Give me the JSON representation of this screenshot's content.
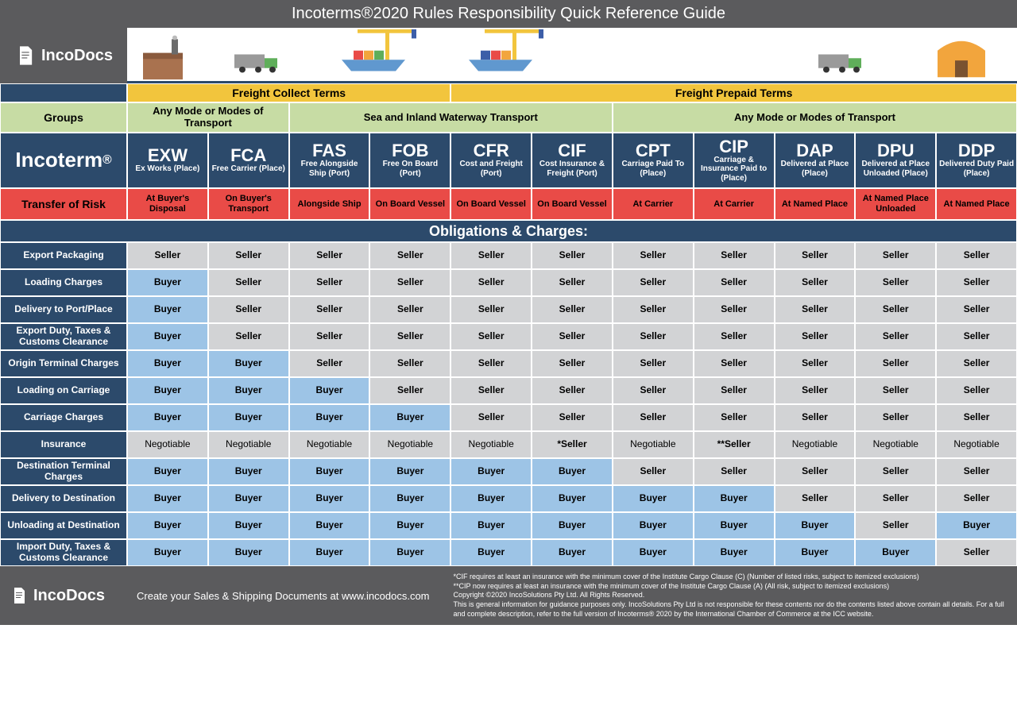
{
  "title": "Incoterms®2020 Rules Responsibility Quick Reference Guide",
  "brand": "IncoDocs",
  "colors": {
    "navy": "#2c4a6b",
    "yellow": "#f2c53d",
    "green": "#c7dca4",
    "red": "#e94b47",
    "seller_grey": "#d2d3d5",
    "buyer_blue": "#9dc4e6",
    "header_grey": "#5b5b5d"
  },
  "freightGroups": {
    "collect": {
      "label": "Freight Collect Terms",
      "span": 4
    },
    "prepaid": {
      "label": "Freight Prepaid Terms",
      "span": 7
    }
  },
  "transportGroups": [
    {
      "label": "Any Mode or Modes of Transport",
      "span": 2
    },
    {
      "label": "Sea and Inland Waterway Transport",
      "span": 4
    },
    {
      "label": "Any Mode or Modes of Transport",
      "span": 5
    }
  ],
  "rowLabels": {
    "groups": "Groups",
    "incoterm": "Incoterm",
    "transferRisk": "Transfer of Risk",
    "obligations": "Obligations & Charges:"
  },
  "incoterms": [
    {
      "code": "EXW",
      "desc": "Ex Works (Place)",
      "risk": "At Buyer's Disposal"
    },
    {
      "code": "FCA",
      "desc": "Free Carrier (Place)",
      "risk": "On Buyer's Transport"
    },
    {
      "code": "FAS",
      "desc": "Free Alongside Ship (Port)",
      "risk": "Alongside Ship"
    },
    {
      "code": "FOB",
      "desc": "Free On Board (Port)",
      "risk": "On Board Vessel"
    },
    {
      "code": "CFR",
      "desc": "Cost and Freight (Port)",
      "risk": "On Board Vessel"
    },
    {
      "code": "CIF",
      "desc": "Cost Insurance & Freight (Port)",
      "risk": "On Board Vessel"
    },
    {
      "code": "CPT",
      "desc": "Carriage Paid To (Place)",
      "risk": "At Carrier"
    },
    {
      "code": "CIP",
      "desc": "Carriage & Insurance Paid to (Place)",
      "risk": "At Carrier"
    },
    {
      "code": "DAP",
      "desc": "Delivered at Place (Place)",
      "risk": "At Named Place"
    },
    {
      "code": "DPU",
      "desc": "Delivered at Place Unloaded (Place)",
      "risk": "At Named Place Unloaded"
    },
    {
      "code": "DDP",
      "desc": "Delivered Duty Paid (Place)",
      "risk": "At Named Place"
    }
  ],
  "obligationRows": [
    {
      "label": "Export Packaging",
      "vals": [
        "Seller",
        "Seller",
        "Seller",
        "Seller",
        "Seller",
        "Seller",
        "Seller",
        "Seller",
        "Seller",
        "Seller",
        "Seller"
      ]
    },
    {
      "label": "Loading Charges",
      "vals": [
        "Buyer",
        "Seller",
        "Seller",
        "Seller",
        "Seller",
        "Seller",
        "Seller",
        "Seller",
        "Seller",
        "Seller",
        "Seller"
      ]
    },
    {
      "label": "Delivery to Port/Place",
      "vals": [
        "Buyer",
        "Seller",
        "Seller",
        "Seller",
        "Seller",
        "Seller",
        "Seller",
        "Seller",
        "Seller",
        "Seller",
        "Seller"
      ]
    },
    {
      "label": "Export Duty, Taxes & Customs Clearance",
      "vals": [
        "Buyer",
        "Seller",
        "Seller",
        "Seller",
        "Seller",
        "Seller",
        "Seller",
        "Seller",
        "Seller",
        "Seller",
        "Seller"
      ]
    },
    {
      "label": "Origin Terminal Charges",
      "vals": [
        "Buyer",
        "Buyer",
        "Seller",
        "Seller",
        "Seller",
        "Seller",
        "Seller",
        "Seller",
        "Seller",
        "Seller",
        "Seller"
      ]
    },
    {
      "label": "Loading on Carriage",
      "vals": [
        "Buyer",
        "Buyer",
        "Buyer",
        "Seller",
        "Seller",
        "Seller",
        "Seller",
        "Seller",
        "Seller",
        "Seller",
        "Seller"
      ]
    },
    {
      "label": "Carriage Charges",
      "vals": [
        "Buyer",
        "Buyer",
        "Buyer",
        "Buyer",
        "Seller",
        "Seller",
        "Seller",
        "Seller",
        "Seller",
        "Seller",
        "Seller"
      ]
    },
    {
      "label": "Insurance",
      "vals": [
        "Negotiable",
        "Negotiable",
        "Negotiable",
        "Negotiable",
        "Negotiable",
        "*Seller",
        "Negotiable",
        "**Seller",
        "Negotiable",
        "Negotiable",
        "Negotiable"
      ]
    },
    {
      "label": "Destination Terminal Charges",
      "vals": [
        "Buyer",
        "Buyer",
        "Buyer",
        "Buyer",
        "Buyer",
        "Buyer",
        "Seller",
        "Seller",
        "Seller",
        "Seller",
        "Seller"
      ]
    },
    {
      "label": "Delivery to Destination",
      "vals": [
        "Buyer",
        "Buyer",
        "Buyer",
        "Buyer",
        "Buyer",
        "Buyer",
        "Buyer",
        "Buyer",
        "Seller",
        "Seller",
        "Seller"
      ]
    },
    {
      "label": "Unloading at Destination",
      "vals": [
        "Buyer",
        "Buyer",
        "Buyer",
        "Buyer",
        "Buyer",
        "Buyer",
        "Buyer",
        "Buyer",
        "Buyer",
        "Seller",
        "Buyer"
      ]
    },
    {
      "label": "Import Duty, Taxes & Customs Clearance",
      "vals": [
        "Buyer",
        "Buyer",
        "Buyer",
        "Buyer",
        "Buyer",
        "Buyer",
        "Buyer",
        "Buyer",
        "Buyer",
        "Buyer",
        "Seller"
      ]
    }
  ],
  "footer": {
    "tagline": "Create your Sales & Shipping Documents at www.incodocs.com",
    "legal": [
      "*CIF requires at least an insurance with the minimum cover of the Institute Cargo Clause (C) (Number of listed risks, subject to itemized exclusions)",
      "**CIP now requires at least an insurance with the minimum cover of the Institute Cargo Clause (A) (All risk, subject to itemized exclusions)",
      "Copyright ©2020 IncoSolutions Pty Ltd. All Rights Reserved.",
      "This is general information for guidance purposes only. IncoSolutions Pty Ltd is not responsible for these contents nor do the contents listed above contain all details. For a full and complete description, refer to the full version of Incoterms® 2020 by the International Chamber of Commerce at the ICC website."
    ]
  }
}
